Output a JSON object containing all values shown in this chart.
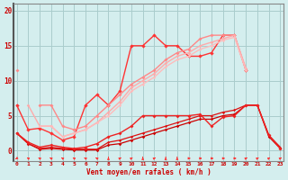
{
  "background_color": "#d4eeee",
  "grid_color": "#aacccc",
  "xlabel": "Vent moyen/en rafales ( km/h )",
  "ylabel_ticks": [
    0,
    5,
    10,
    15,
    20
  ],
  "xlim": [
    -0.3,
    23.3
  ],
  "ylim": [
    -1.5,
    21
  ],
  "series": [
    {
      "color": "#cc0000",
      "lw": 0.9,
      "marker": "D",
      "ms": 1.8,
      "y": [
        2.5,
        1.0,
        0.2,
        0.3,
        0.2,
        0.1,
        0.1,
        0.1,
        0.8,
        1.0,
        1.5,
        2.0,
        2.5,
        3.0,
        3.5,
        4.0,
        4.5,
        4.5,
        5.0,
        5.2,
        6.5,
        6.5,
        2.0,
        0.3
      ]
    },
    {
      "color": "#dd1111",
      "lw": 0.9,
      "marker": "D",
      "ms": 1.6,
      "y": [
        2.5,
        1.0,
        0.3,
        0.5,
        0.3,
        0.2,
        0.2,
        0.2,
        1.2,
        1.5,
        2.0,
        2.5,
        3.0,
        3.5,
        4.0,
        4.5,
        5.0,
        5.0,
        5.5,
        5.8,
        6.5,
        6.5,
        2.2,
        0.5
      ]
    },
    {
      "color": "#ee2222",
      "lw": 1.0,
      "marker": "D",
      "ms": 2.0,
      "y": [
        2.5,
        1.2,
        0.5,
        0.8,
        0.5,
        0.3,
        0.5,
        1.0,
        2.0,
        2.5,
        3.5,
        5.0,
        5.0,
        5.0,
        5.0,
        5.0,
        5.2,
        3.5,
        4.8,
        5.0,
        6.5,
        6.5,
        2.2,
        0.3
      ]
    },
    {
      "color": "#ff3333",
      "lw": 1.0,
      "marker": "D",
      "ms": 2.2,
      "y": [
        6.5,
        3.0,
        3.2,
        2.5,
        1.5,
        2.0,
        6.5,
        8.0,
        6.5,
        8.5,
        15.0,
        15.0,
        16.5,
        15.0,
        15.0,
        13.5,
        13.5,
        14.0,
        16.5,
        16.5,
        11.5,
        null,
        null,
        null
      ]
    },
    {
      "color": "#ff8888",
      "lw": 1.0,
      "marker": "D",
      "ms": 2.0,
      "y": [
        11.5,
        null,
        6.5,
        6.5,
        3.5,
        3.0,
        3.5,
        5.0,
        6.5,
        8.0,
        9.5,
        10.5,
        11.5,
        13.0,
        14.0,
        14.5,
        16.0,
        16.5,
        16.5,
        16.5,
        11.5,
        null,
        null,
        null
      ]
    },
    {
      "color": "#ffaaaa",
      "lw": 1.0,
      "marker": "D",
      "ms": 1.8,
      "y": [
        null,
        6.5,
        3.5,
        3.5,
        2.0,
        2.5,
        3.0,
        4.0,
        5.5,
        7.0,
        9.0,
        10.0,
        11.0,
        12.5,
        13.5,
        14.0,
        15.0,
        15.5,
        16.0,
        16.5,
        11.8,
        null,
        null,
        null
      ]
    },
    {
      "color": "#ffbbbb",
      "lw": 1.0,
      "marker": "D",
      "ms": 1.6,
      "y": [
        null,
        null,
        3.5,
        3.5,
        2.0,
        2.5,
        3.0,
        4.0,
        5.0,
        6.5,
        8.5,
        9.5,
        10.5,
        12.0,
        13.0,
        13.5,
        14.5,
        15.0,
        15.8,
        16.2,
        11.5,
        null,
        null,
        null
      ]
    }
  ],
  "x_labels": [
    "0",
    "1",
    "2",
    "3",
    "4",
    "5",
    "6",
    "7",
    "8",
    "9",
    "10",
    "11",
    "12",
    "13",
    "14",
    "15",
    "16",
    "17",
    "18",
    "19",
    "20",
    "21",
    "22",
    "23"
  ]
}
